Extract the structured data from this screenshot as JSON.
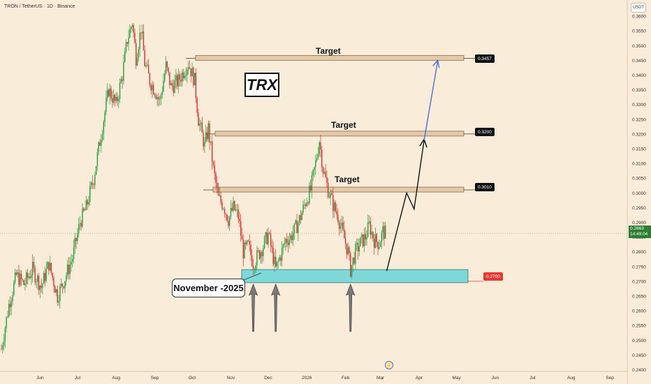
{
  "header": {
    "symbol": "TRON / TetherUS · 1D · Binance",
    "currency": "USDT"
  },
  "annotations": {
    "badge": "TRX",
    "callout": "November -2025",
    "target_label": "Target"
  },
  "price_tags": {
    "t1": "0.3457",
    "t2": "0.3200",
    "t3": "0.3010",
    "support": "0.2700",
    "last_price": "0.2863",
    "countdown": "14:49:04"
  },
  "colors": {
    "background": "#f9ecd9",
    "bull": "#1e9e3a",
    "bear": "#d32f2f",
    "zone_fill": "#7fd8d8",
    "target_zone": "#e4c9a8",
    "projection": "#111111",
    "projection_ext": "#4a6fd8"
  },
  "chart_data": {
    "type": "candlestick",
    "title": "TRON / TetherUS · 1D · Binance",
    "ylim": [
      0.2375,
      0.365
    ],
    "y_ticks": [
      0.36,
      0.355,
      0.35,
      0.345,
      0.34,
      0.335,
      0.33,
      0.325,
      0.32,
      0.315,
      0.31,
      0.305,
      0.3,
      0.295,
      0.29,
      0.285,
      0.28,
      0.275,
      0.27,
      0.265,
      0.26,
      0.255,
      0.25,
      0.245,
      0.24
    ],
    "x_ticks": [
      "Jun",
      "Jul",
      "Aug",
      "Sep",
      "Oct",
      "Nov",
      "Dec",
      "2026",
      "Feb",
      "Mar",
      "Apr",
      "May",
      "Jun",
      "Jul",
      "Aug",
      "Sep"
    ],
    "x_tick_days": [
      31,
      61,
      92,
      123,
      153,
      184,
      214,
      245,
      276,
      304,
      335,
      365,
      396,
      426,
      457,
      488
    ],
    "last_day": 308,
    "target_levels": [
      0.3457,
      0.32,
      0.301
    ],
    "support_zone": [
      0.27,
      0.2735
    ],
    "last_price": 0.2863,
    "projection_path": [
      {
        "day": 309,
        "price": 0.2735
      },
      {
        "day": 325,
        "price": 0.3
      },
      {
        "day": 331,
        "price": 0.2945
      },
      {
        "day": 339,
        "price": 0.3178
      }
    ],
    "projection_ext_path": [
      {
        "day": 339,
        "price": 0.3178
      },
      {
        "day": 350,
        "price": 0.345
      }
    ],
    "arrow_days": [
      202,
      220,
      280
    ],
    "candle_anchors": [
      {
        "d": 0,
        "p": 0.247
      },
      {
        "d": 6,
        "p": 0.262
      },
      {
        "d": 12,
        "p": 0.272
      },
      {
        "d": 18,
        "p": 0.269
      },
      {
        "d": 25,
        "p": 0.274
      },
      {
        "d": 32,
        "p": 0.268
      },
      {
        "d": 38,
        "p": 0.276
      },
      {
        "d": 45,
        "p": 0.265
      },
      {
        "d": 50,
        "p": 0.27
      },
      {
        "d": 57,
        "p": 0.278
      },
      {
        "d": 63,
        "p": 0.29
      },
      {
        "d": 68,
        "p": 0.295
      },
      {
        "d": 74,
        "p": 0.305
      },
      {
        "d": 80,
        "p": 0.32
      },
      {
        "d": 86,
        "p": 0.335
      },
      {
        "d": 92,
        "p": 0.33
      },
      {
        "d": 97,
        "p": 0.34
      },
      {
        "d": 101,
        "p": 0.352
      },
      {
        "d": 105,
        "p": 0.358
      },
      {
        "d": 108,
        "p": 0.346
      },
      {
        "d": 112,
        "p": 0.356
      },
      {
        "d": 115,
        "p": 0.344
      },
      {
        "d": 119,
        "p": 0.338
      },
      {
        "d": 123,
        "p": 0.335
      },
      {
        "d": 127,
        "p": 0.331
      },
      {
        "d": 132,
        "p": 0.343
      },
      {
        "d": 136,
        "p": 0.336
      },
      {
        "d": 142,
        "p": 0.338
      },
      {
        "d": 147,
        "p": 0.342
      },
      {
        "d": 150,
        "p": 0.344
      },
      {
        "d": 155,
        "p": 0.338
      },
      {
        "d": 158,
        "p": 0.325
      },
      {
        "d": 163,
        "p": 0.316
      },
      {
        "d": 166,
        "p": 0.322
      },
      {
        "d": 170,
        "p": 0.308
      },
      {
        "d": 174,
        "p": 0.298
      },
      {
        "d": 178,
        "p": 0.296
      },
      {
        "d": 182,
        "p": 0.291
      },
      {
        "d": 186,
        "p": 0.295
      },
      {
        "d": 190,
        "p": 0.292
      },
      {
        "d": 194,
        "p": 0.28
      },
      {
        "d": 198,
        "p": 0.282
      },
      {
        "d": 202,
        "p": 0.276
      },
      {
        "d": 206,
        "p": 0.279
      },
      {
        "d": 210,
        "p": 0.282
      },
      {
        "d": 214,
        "p": 0.286
      },
      {
        "d": 217,
        "p": 0.28
      },
      {
        "d": 220,
        "p": 0.274
      },
      {
        "d": 224,
        "p": 0.279
      },
      {
        "d": 228,
        "p": 0.284
      },
      {
        "d": 232,
        "p": 0.285
      },
      {
        "d": 236,
        "p": 0.288
      },
      {
        "d": 240,
        "p": 0.292
      },
      {
        "d": 244,
        "p": 0.297
      },
      {
        "d": 248,
        "p": 0.301
      },
      {
        "d": 252,
        "p": 0.31
      },
      {
        "d": 255,
        "p": 0.318
      },
      {
        "d": 258,
        "p": 0.308
      },
      {
        "d": 262,
        "p": 0.301
      },
      {
        "d": 266,
        "p": 0.296
      },
      {
        "d": 270,
        "p": 0.292
      },
      {
        "d": 274,
        "p": 0.286
      },
      {
        "d": 278,
        "p": 0.28
      },
      {
        "d": 280,
        "p": 0.274
      },
      {
        "d": 284,
        "p": 0.28
      },
      {
        "d": 288,
        "p": 0.283
      },
      {
        "d": 292,
        "p": 0.285
      },
      {
        "d": 295,
        "p": 0.289
      },
      {
        "d": 299,
        "p": 0.284
      },
      {
        "d": 303,
        "p": 0.283
      },
      {
        "d": 306,
        "p": 0.287
      },
      {
        "d": 308,
        "p": 0.2863
      }
    ]
  }
}
